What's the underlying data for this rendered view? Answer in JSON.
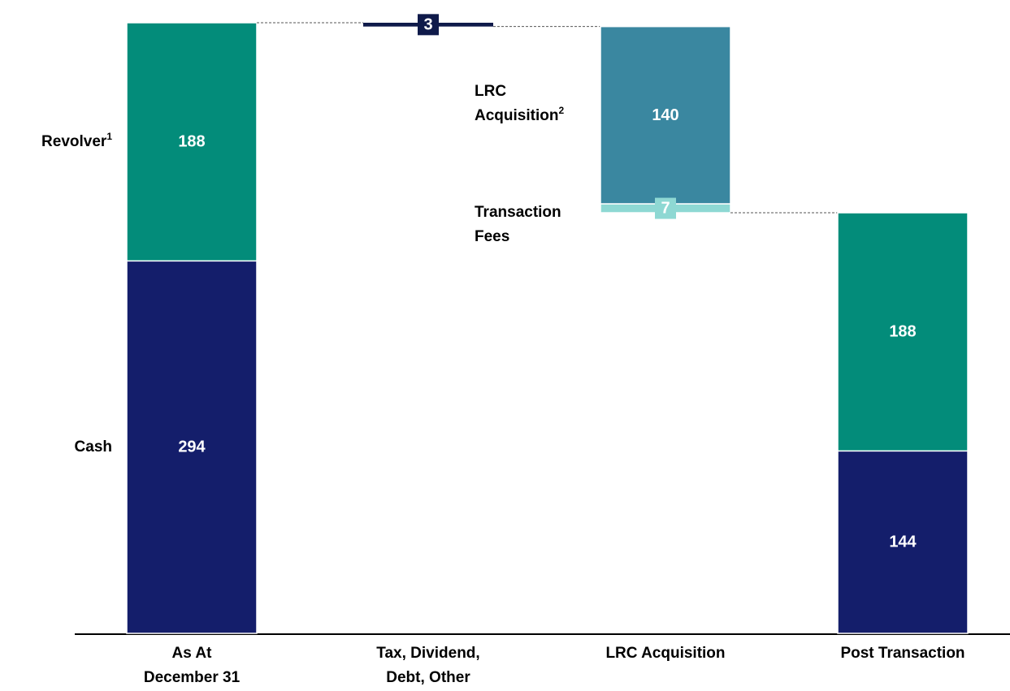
{
  "chart_data": {
    "type": "waterfall",
    "categories": [
      "As At\nDecember 31",
      "Tax, Dividend,\nDebt, Other",
      "LRC Acquisition",
      "Post Transaction"
    ],
    "series": [
      {
        "name": "Cash",
        "color": "#141e6b",
        "values": [
          294,
          null,
          null,
          144
        ]
      },
      {
        "name": "Revolver",
        "footnote": "1",
        "color": "#038c7a",
        "values": [
          188,
          null,
          null,
          188
        ]
      }
    ],
    "steps": [
      {
        "color": "#0f1a4a",
        "values": [
          null,
          -3,
          null,
          null
        ],
        "value_labels": [
          null,
          "3",
          null,
          null
        ]
      },
      {
        "name": "LRC\nAcquisition",
        "footnote": "2",
        "color": "#3a87a0",
        "values": [
          null,
          null,
          -140,
          null
        ],
        "value_labels": [
          null,
          null,
          "140",
          null
        ]
      },
      {
        "name": "Transaction\nFees",
        "color": "#8ed8d3",
        "values": [
          null,
          null,
          -7,
          null
        ],
        "value_labels": [
          null,
          null,
          "7",
          null
        ]
      }
    ]
  }
}
